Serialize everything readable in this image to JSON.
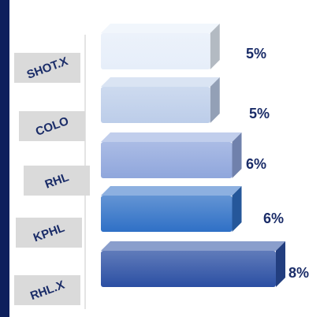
{
  "chart_data": {
    "type": "bar",
    "orientation": "horizontal",
    "categories": [
      "SHOT.X",
      "COLO",
      "RHL",
      "KPHL",
      "RHL.X"
    ],
    "values": [
      5,
      5,
      6,
      6,
      8
    ],
    "value_labels": [
      "5%",
      "5%",
      "6%",
      "6%",
      "8%"
    ],
    "colors": [
      "#e6eef9",
      "#bccde9",
      "#8fa6dc",
      "#2f70c6",
      "#2b4fa3"
    ],
    "title": "",
    "xlabel": "",
    "ylabel": "",
    "grid": false,
    "legend": "none"
  },
  "colors": {
    "side_bar": "#0d1f5c",
    "label_text": "#1a2c68",
    "label_box": "#dadada"
  }
}
